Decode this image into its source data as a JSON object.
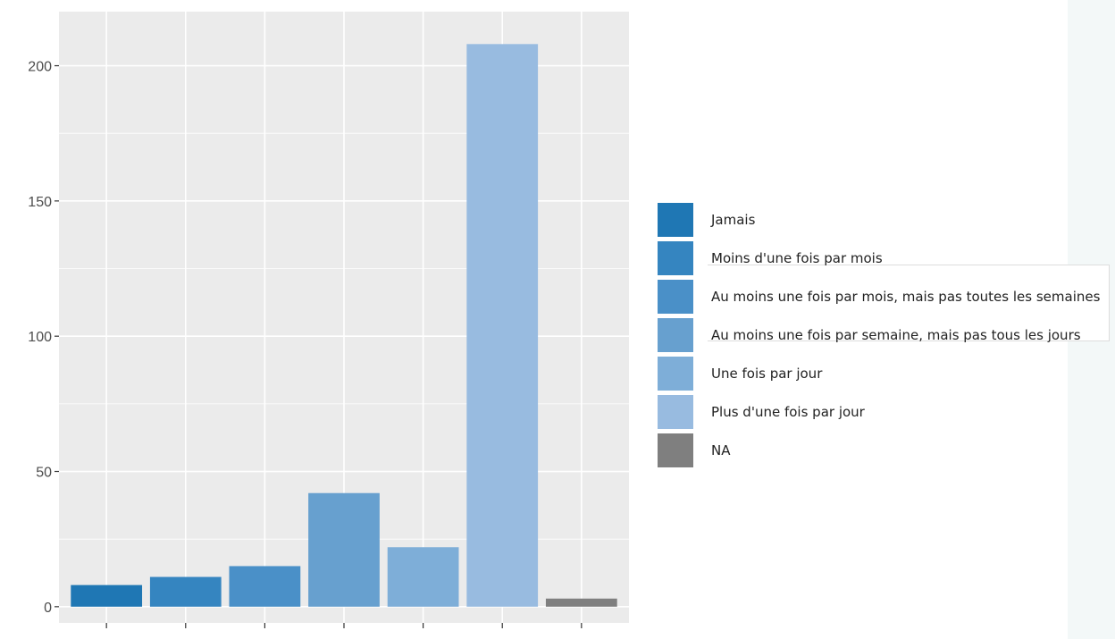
{
  "chart_data": {
    "type": "bar",
    "categories": [
      "Jamais",
      "Moins d'une fois par mois",
      "Au moins une fois par mois, mais pas toutes les semaines",
      "Au moins une fois par semaine, mais pas tous les jours",
      "Une fois par jour",
      "Plus d'une fois par jour",
      "NA"
    ],
    "values": [
      8,
      11,
      15,
      42,
      22,
      208,
      3
    ],
    "colors": [
      "#1f77b4",
      "#3585c0",
      "#4a90c8",
      "#67a0cf",
      "#7eaed8",
      "#98bbe0",
      "#7f7f7f"
    ],
    "ylim": [
      -6,
      220
    ],
    "yticks": [
      0,
      50,
      100,
      150,
      200
    ],
    "ytick_labels": [
      "0",
      "50",
      "100",
      "150",
      "200"
    ],
    "title": "",
    "xlabel": "",
    "ylabel": "",
    "grid": true,
    "legend_position": "right",
    "panel_background": "#ebebeb",
    "grid_color": "#ffffff"
  },
  "legend": {
    "items": [
      {
        "label": "Jamais"
      },
      {
        "label": "Moins d'une fois par mois"
      },
      {
        "label": "Au moins une fois par mois, mais pas toutes les semaines"
      },
      {
        "label": "Au moins une fois par semaine, mais pas tous les jours"
      },
      {
        "label": "Une fois par jour"
      },
      {
        "label": "Plus d'une fois par jour"
      },
      {
        "label": "NA"
      }
    ]
  }
}
